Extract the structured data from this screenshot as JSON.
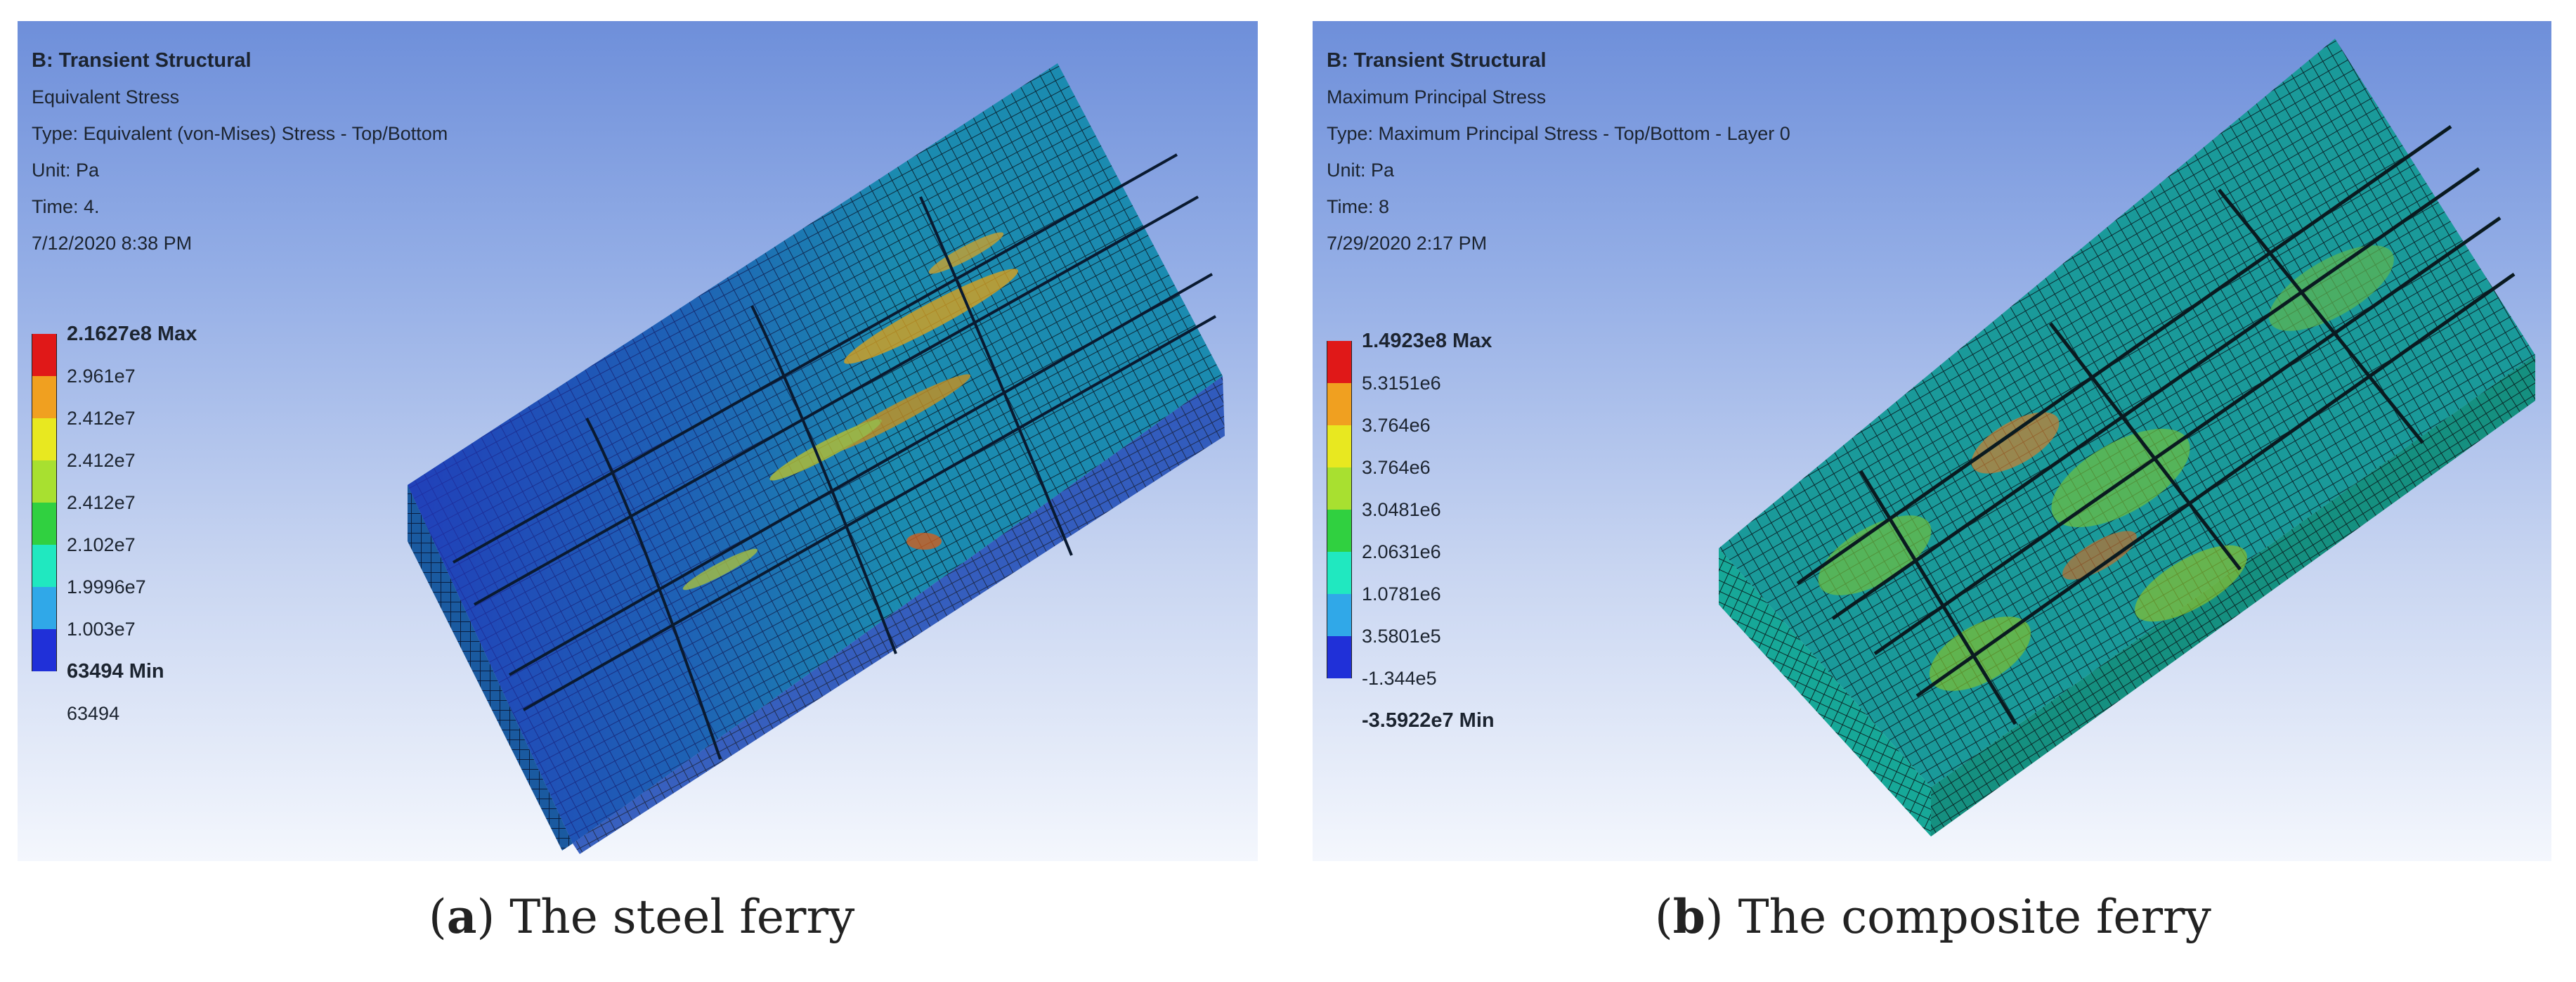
{
  "panels": {
    "steel": {
      "info": {
        "title": "B: Transient Structural",
        "result": "Equivalent Stress",
        "type": "Type: Equivalent (von-Mises) Stress - Top/Bottom",
        "unit": "Unit: Pa",
        "time": "Time: 4.",
        "date": "7/12/2020 8:38 PM"
      },
      "legend": {
        "max": "2.1627e8 Max",
        "min": "63494 Min",
        "labels": [
          "2.961e7",
          "2.412e7",
          "2.412e7",
          "2.412e7",
          "2.102e7",
          "1.9996e7",
          "1.003e7"
        ],
        "bottom": "63494",
        "colors": [
          "#e01818",
          "#f0a020",
          "#e8e820",
          "#a8e030",
          "#30d040",
          "#20e8c0",
          "#30a8e8",
          "#2030d8"
        ]
      },
      "caption_letter": "a",
      "caption_text": " The steel ferry"
    },
    "composite": {
      "info": {
        "title": "B: Transient Structural",
        "result": "Maximum Principal Stress",
        "type": "Type: Maximum Principal Stress - Top/Bottom - Layer 0",
        "unit": "Unit: Pa",
        "time": "Time: 8",
        "date": "7/29/2020 2:17 PM"
      },
      "legend": {
        "max": "1.4923e8 Max",
        "labels": [
          "5.3151e6",
          "3.764e6",
          "3.764e6",
          "3.0481e6",
          "2.0631e6",
          "1.0781e6",
          "3.5801e5",
          "-1.344e5"
        ],
        "min": "-3.5922e7 Min",
        "colors": [
          "#e01818",
          "#f0a020",
          "#e8e820",
          "#a8e030",
          "#30d040",
          "#20e8c0",
          "#30a8e8",
          "#2030d8"
        ]
      },
      "caption_letter": "b",
      "caption_text": " The composite ferry"
    }
  }
}
